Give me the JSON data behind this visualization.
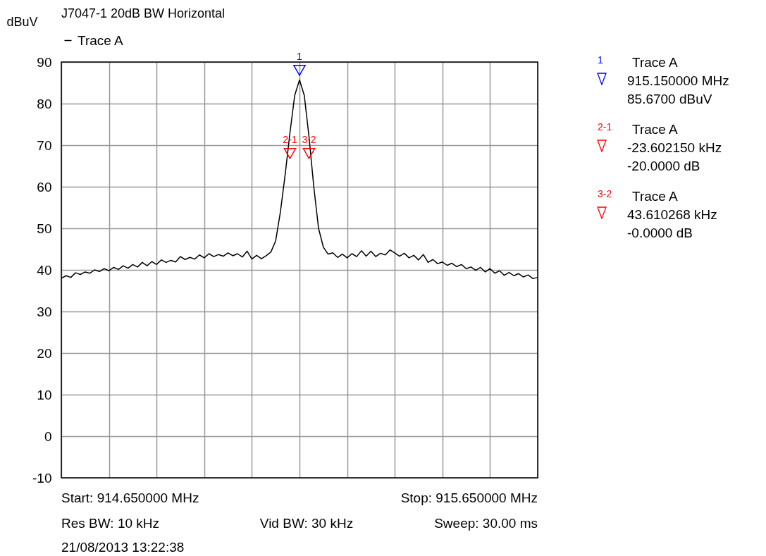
{
  "chart_data": {
    "type": "line",
    "title": "J7047-1 20dB BW Horizontal",
    "ylabel": "dBuV",
    "categories": [
      null,
      null,
      null,
      null,
      null,
      null,
      null,
      null,
      null,
      null,
      null,
      null,
      null,
      null,
      null,
      null,
      null,
      null,
      null,
      null,
      null,
      null,
      null,
      null,
      null,
      null,
      null,
      null,
      null,
      null,
      null,
      null,
      null,
      null,
      null,
      null,
      null,
      null,
      null,
      null,
      null,
      null,
      null,
      null,
      null,
      null,
      null,
      null,
      null,
      null,
      null,
      null,
      null,
      null,
      null,
      null,
      null,
      null,
      null,
      null,
      null,
      null,
      null,
      null,
      null,
      null,
      null,
      null,
      null,
      null,
      null,
      null,
      null,
      null,
      null,
      null,
      null,
      null,
      null,
      null,
      null,
      null,
      null,
      null,
      null,
      null,
      null,
      null,
      null,
      null,
      null,
      null,
      null,
      null,
      null,
      null,
      null,
      null,
      null,
      null,
      null
    ],
    "ylim": [
      -10,
      90
    ],
    "yticks": [
      -10,
      0,
      10,
      20,
      30,
      40,
      50,
      60,
      70,
      80,
      90
    ],
    "tick_labels": "y",
    "grid": true,
    "legend": "top left",
    "series": [
      {
        "name": "Trace A",
        "color": "#000000",
        "values": [
          38.0,
          38.6,
          38.2,
          39.3,
          38.9,
          39.5,
          39.2,
          40.0,
          39.6,
          40.3,
          39.8,
          40.6,
          40.1,
          41.0,
          40.4,
          41.3,
          40.7,
          41.8,
          41.0,
          42.0,
          41.3,
          42.4,
          41.8,
          42.3,
          41.9,
          43.2,
          42.5,
          43.0,
          42.6,
          43.6,
          42.9,
          43.9,
          43.2,
          43.7,
          43.3,
          44.1,
          43.4,
          43.9,
          43.1,
          44.5,
          42.6,
          43.5,
          42.7,
          43.4,
          44.3,
          47.0,
          54.0,
          63.0,
          73.0,
          82.0,
          85.67,
          82.0,
          72.0,
          60.0,
          50.0,
          45.5,
          43.8,
          44.1,
          43.0,
          43.8,
          42.9,
          43.9,
          43.2,
          44.6,
          43.3,
          44.5,
          43.2,
          44.0,
          43.6,
          44.8,
          44.1,
          43.3,
          44.0,
          42.9,
          43.5,
          42.4,
          43.7,
          41.8,
          42.5,
          41.5,
          41.9,
          41.1,
          41.6,
          40.8,
          41.3,
          40.3,
          40.7,
          39.9,
          40.6,
          39.5,
          40.3,
          39.2,
          39.8,
          38.7,
          39.4,
          38.6,
          39.1,
          38.3,
          38.8,
          37.9,
          38.2
        ]
      },
      {
        "name": "1",
        "type": "scatter",
        "color": "#0000ff",
        "marker": "triangle",
        "values": [
          null,
          null,
          null,
          null,
          null,
          null,
          null,
          null,
          null,
          null,
          null,
          null,
          null,
          null,
          null,
          null,
          null,
          null,
          null,
          null,
          null,
          null,
          null,
          null,
          null,
          null,
          null,
          null,
          null,
          null,
          null,
          null,
          null,
          null,
          null,
          null,
          null,
          null,
          null,
          null,
          null,
          null,
          null,
          null,
          null,
          null,
          null,
          null,
          null,
          null,
          88,
          null,
          null,
          null,
          null,
          null,
          null,
          null,
          null,
          null,
          null,
          null,
          null,
          null,
          null,
          null,
          null,
          null,
          null,
          null,
          null,
          null,
          null,
          null,
          null,
          null,
          null,
          null,
          null,
          null,
          null,
          null,
          null,
          null,
          null,
          null,
          null,
          null,
          null,
          null,
          null,
          null,
          null,
          null,
          null,
          null,
          null,
          null,
          null,
          null,
          null
        ]
      },
      {
        "name": "2-1",
        "type": "scatter",
        "color": "#ff0000",
        "marker": "triangle",
        "values": [
          null,
          null,
          null,
          null,
          null,
          null,
          null,
          null,
          null,
          null,
          null,
          null,
          null,
          null,
          null,
          null,
          null,
          null,
          null,
          null,
          null,
          null,
          null,
          null,
          null,
          null,
          null,
          null,
          null,
          null,
          null,
          null,
          null,
          null,
          null,
          null,
          null,
          null,
          null,
          null,
          null,
          null,
          null,
          null,
          null,
          null,
          null,
          null,
          68,
          null,
          null,
          null,
          null,
          null,
          null,
          null,
          null,
          null,
          null,
          null,
          null,
          null,
          null,
          null,
          null,
          null,
          null,
          null,
          null,
          null,
          null,
          null,
          null,
          null,
          null,
          null,
          null,
          null,
          null,
          null,
          null,
          null,
          null,
          null,
          null,
          null,
          null,
          null,
          null,
          null,
          null,
          null,
          null,
          null,
          null,
          null,
          null,
          null,
          null,
          null,
          null
        ]
      },
      {
        "name": "3-2",
        "type": "scatter",
        "color": "#ff0000",
        "marker": "triangle",
        "values": [
          null,
          null,
          null,
          null,
          null,
          null,
          null,
          null,
          null,
          null,
          null,
          null,
          null,
          null,
          null,
          null,
          null,
          null,
          null,
          null,
          null,
          null,
          null,
          null,
          null,
          null,
          null,
          null,
          null,
          null,
          null,
          null,
          null,
          null,
          null,
          null,
          null,
          null,
          null,
          null,
          null,
          null,
          null,
          null,
          null,
          null,
          null,
          null,
          null,
          null,
          null,
          null,
          68,
          null,
          null,
          null,
          null,
          null,
          null,
          null,
          null,
          null,
          null,
          null,
          null,
          null,
          null,
          null,
          null,
          null,
          null,
          null,
          null,
          null,
          null,
          null,
          null,
          null,
          null,
          null,
          null,
          null,
          null,
          null,
          null,
          null,
          null,
          null,
          null,
          null,
          null,
          null,
          null,
          null,
          null,
          null,
          null,
          null,
          null,
          null,
          null
        ]
      }
    ],
    "annotations": [
      "Start: 914.650000 MHz",
      "Stop: 915.650000 MHz",
      "Res BW: 10 kHz",
      "Vid BW: 30 kHz",
      "Sweep: 30.00 ms",
      "21/08/2013 13:22:38",
      "Trace A",
      "915.150000 MHz",
      "85.6700 dBuV",
      "Trace A",
      "-23.602150 kHz",
      "-20.0000 dB",
      "Trace A",
      "43.610268 kHz",
      "-0.0000 dB"
    ]
  }
}
